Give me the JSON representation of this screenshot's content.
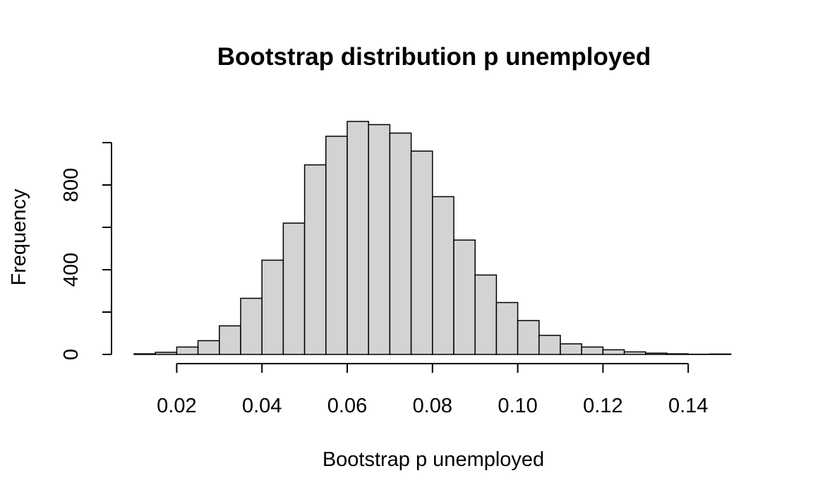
{
  "chart_data": {
    "type": "bar",
    "title": "Bootstrap distribution p unemployed",
    "xlabel": "Bootstrap p unemployed",
    "ylabel": "Frequency",
    "xlim": [
      0.01,
      0.15
    ],
    "ylim": [
      0,
      1000
    ],
    "x_ticks": [
      0.02,
      0.04,
      0.06,
      0.08,
      0.1,
      0.12,
      0.14
    ],
    "x_tick_labels": [
      "0.02",
      "0.04",
      "0.06",
      "0.08",
      "0.10",
      "0.12",
      "0.14"
    ],
    "y_ticks": [
      0,
      200,
      400,
      600,
      800,
      1000
    ],
    "y_tick_labels": [
      "0",
      "",
      "400",
      "",
      "800",
      ""
    ],
    "bin_width": 0.005,
    "bin_start": 0.01,
    "values": [
      3,
      10,
      35,
      65,
      135,
      265,
      445,
      620,
      895,
      1030,
      1100,
      1085,
      1045,
      960,
      745,
      540,
      375,
      245,
      160,
      90,
      50,
      35,
      22,
      12,
      6,
      3,
      1,
      2
    ],
    "bar_fill": "#d3d3d3",
    "bar_stroke": "#000000",
    "grid": false,
    "legend": "none"
  }
}
